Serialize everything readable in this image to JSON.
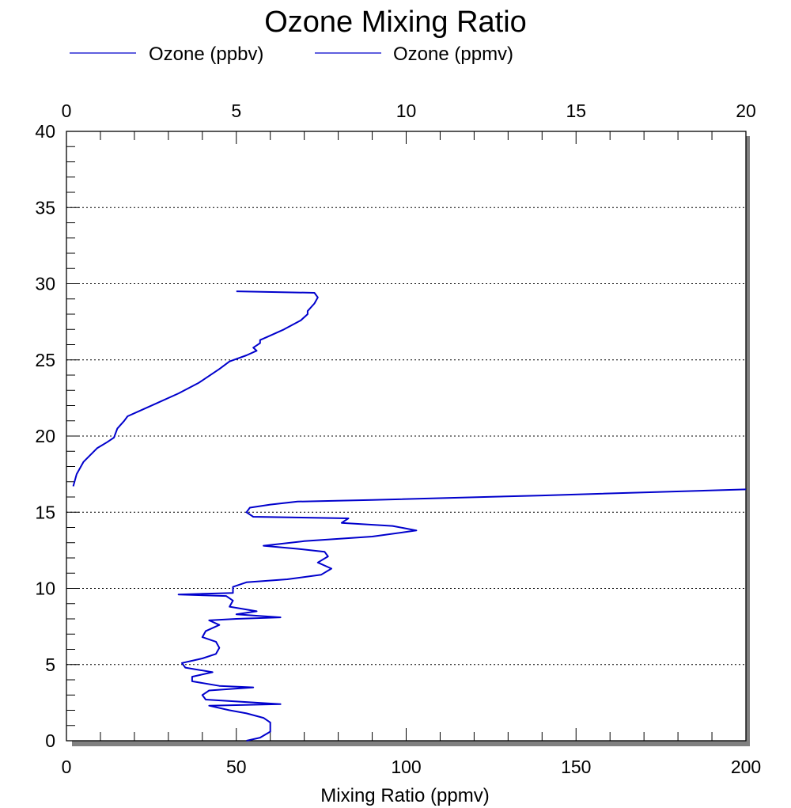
{
  "chart_data": {
    "type": "line",
    "title": "Ozone Mixing Ratio",
    "xlabel": "Mixing Ratio (ppmv)",
    "ylabel": "",
    "legend": [
      {
        "label": "Ozone (ppbv)",
        "color": "#0000cc"
      },
      {
        "label": "Ozone (ppmv)",
        "color": "#0000cc"
      }
    ],
    "legend_position": "top-left",
    "grid": "horizontal dotted",
    "xlim": [
      0,
      200
    ],
    "x2lim": [
      0,
      20
    ],
    "ylim": [
      0,
      40
    ],
    "x_ticks": [
      "0",
      "50",
      "100",
      "150",
      "200"
    ],
    "x2_ticks": [
      "0",
      "5",
      "10",
      "15",
      "20"
    ],
    "y_ticks": [
      "0",
      "5",
      "10",
      "15",
      "20",
      "25",
      "30",
      "35",
      "40"
    ],
    "series": [
      {
        "name": "Ozone (ppbv)",
        "color": "#0000cc",
        "points": [
          [
            53,
            0
          ],
          [
            57,
            0.2
          ],
          [
            60,
            0.6
          ],
          [
            60,
            1.2
          ],
          [
            58,
            1.5
          ],
          [
            53,
            1.8
          ],
          [
            48,
            2.0
          ],
          [
            42,
            2.3
          ],
          [
            63,
            2.4
          ],
          [
            41,
            2.7
          ],
          [
            40,
            3.0
          ],
          [
            42,
            3.3
          ],
          [
            55,
            3.5
          ],
          [
            45,
            3.6
          ],
          [
            37,
            3.9
          ],
          [
            37,
            4.2
          ],
          [
            43,
            4.5
          ],
          [
            35,
            4.8
          ],
          [
            34,
            5.1
          ],
          [
            40,
            5.4
          ],
          [
            44,
            5.7
          ],
          [
            45,
            6.1
          ],
          [
            44,
            6.5
          ],
          [
            40,
            6.8
          ],
          [
            41,
            7.2
          ],
          [
            45,
            7.6
          ],
          [
            42,
            7.9
          ],
          [
            50,
            8.0
          ],
          [
            63,
            8.1
          ],
          [
            50,
            8.3
          ],
          [
            56,
            8.5
          ],
          [
            48,
            8.8
          ],
          [
            49,
            9.2
          ],
          [
            47,
            9.5
          ],
          [
            33,
            9.6
          ],
          [
            49,
            9.7
          ],
          [
            49,
            10.1
          ],
          [
            53,
            10.4
          ],
          [
            65,
            10.6
          ],
          [
            75,
            10.9
          ],
          [
            78,
            11.3
          ],
          [
            74,
            11.7
          ],
          [
            77,
            12.1
          ],
          [
            76,
            12.4
          ],
          [
            68,
            12.6
          ],
          [
            58,
            12.8
          ],
          [
            70,
            13.1
          ],
          [
            90,
            13.4
          ],
          [
            103,
            13.8
          ],
          [
            96,
            14.1
          ],
          [
            81,
            14.3
          ],
          [
            83,
            14.6
          ],
          [
            55,
            14.7
          ],
          [
            53,
            15.0
          ],
          [
            54,
            15.3
          ],
          [
            60,
            15.5
          ],
          [
            68,
            15.7
          ],
          [
            90,
            15.8
          ],
          [
            140,
            16.1
          ],
          [
            200,
            16.5
          ]
        ]
      },
      {
        "name": "Ozone (ppmv)",
        "color": "#0000cc",
        "points": [
          [
            0.2,
            16.7
          ],
          [
            0.3,
            17.5
          ],
          [
            0.5,
            18.3
          ],
          [
            0.9,
            19.2
          ],
          [
            1.2,
            19.6
          ],
          [
            1.4,
            19.9
          ],
          [
            1.5,
            20.5
          ],
          [
            1.7,
            21.0
          ],
          [
            1.8,
            21.3
          ],
          [
            2.2,
            21.7
          ],
          [
            2.7,
            22.2
          ],
          [
            3.3,
            22.8
          ],
          [
            3.9,
            23.5
          ],
          [
            4.3,
            24.1
          ],
          [
            4.5,
            24.4
          ],
          [
            4.8,
            24.9
          ],
          [
            5.3,
            25.3
          ],
          [
            5.6,
            25.6
          ],
          [
            5.5,
            25.8
          ],
          [
            5.7,
            26.1
          ],
          [
            5.7,
            26.3
          ],
          [
            5.9,
            26.5
          ],
          [
            6.4,
            27.0
          ],
          [
            6.9,
            27.6
          ],
          [
            7.1,
            28.0
          ],
          [
            7.1,
            28.2
          ],
          [
            7.3,
            28.7
          ],
          [
            7.4,
            29.1
          ],
          [
            7.3,
            29.4
          ],
          [
            5.0,
            29.5
          ]
        ]
      }
    ]
  }
}
